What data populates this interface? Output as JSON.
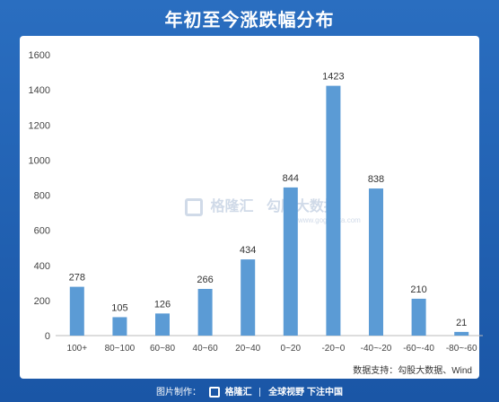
{
  "header": {
    "title": "年初至今涨跌幅分布"
  },
  "watermark": {
    "brand": "格隆汇",
    "sub": "勾股大数据",
    "url": "www.gogudata.com"
  },
  "source_note": "数据支持：勾股大数据、Wind",
  "footer": {
    "credit_label": "图片制作：",
    "brand": "格隆汇",
    "slogan": "全球视野 下注中国"
  },
  "colors": {
    "bar": "#5b9bd5",
    "background": "#1f5fb0",
    "panel": "#ffffff"
  },
  "chart_data": {
    "type": "bar",
    "title": "年初至今涨跌幅分布",
    "categories": [
      "100+",
      "80~100",
      "60~80",
      "40~60",
      "20~40",
      "0~20",
      "-20~0",
      "-40~-20",
      "-60~-40",
      "-80~-60"
    ],
    "values": [
      278,
      105,
      126,
      266,
      434,
      844,
      1423,
      838,
      210,
      21
    ],
    "ylim": [
      0,
      1600
    ],
    "yticks": [
      0,
      200,
      400,
      600,
      800,
      1000,
      1200,
      1400,
      1600
    ],
    "xlabel": "",
    "ylabel": "",
    "grid": false,
    "data_labels": true
  }
}
